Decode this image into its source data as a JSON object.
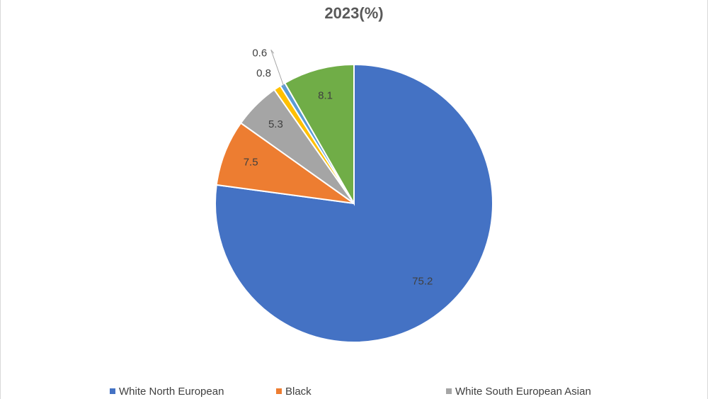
{
  "chart_data": {
    "type": "pie",
    "title": "2023(%)",
    "categories": [
      "White North European",
      "Black",
      "White South European Asian",
      null,
      null,
      null
    ],
    "values": [
      75.2,
      7.5,
      5.3,
      0.8,
      0.6,
      8.1
    ],
    "colors": [
      "#4472c4",
      "#ed7d31",
      "#a5a5a5",
      "#ffc000",
      "#5b9bd5",
      "#70ad47"
    ],
    "legend": "bottom"
  }
}
